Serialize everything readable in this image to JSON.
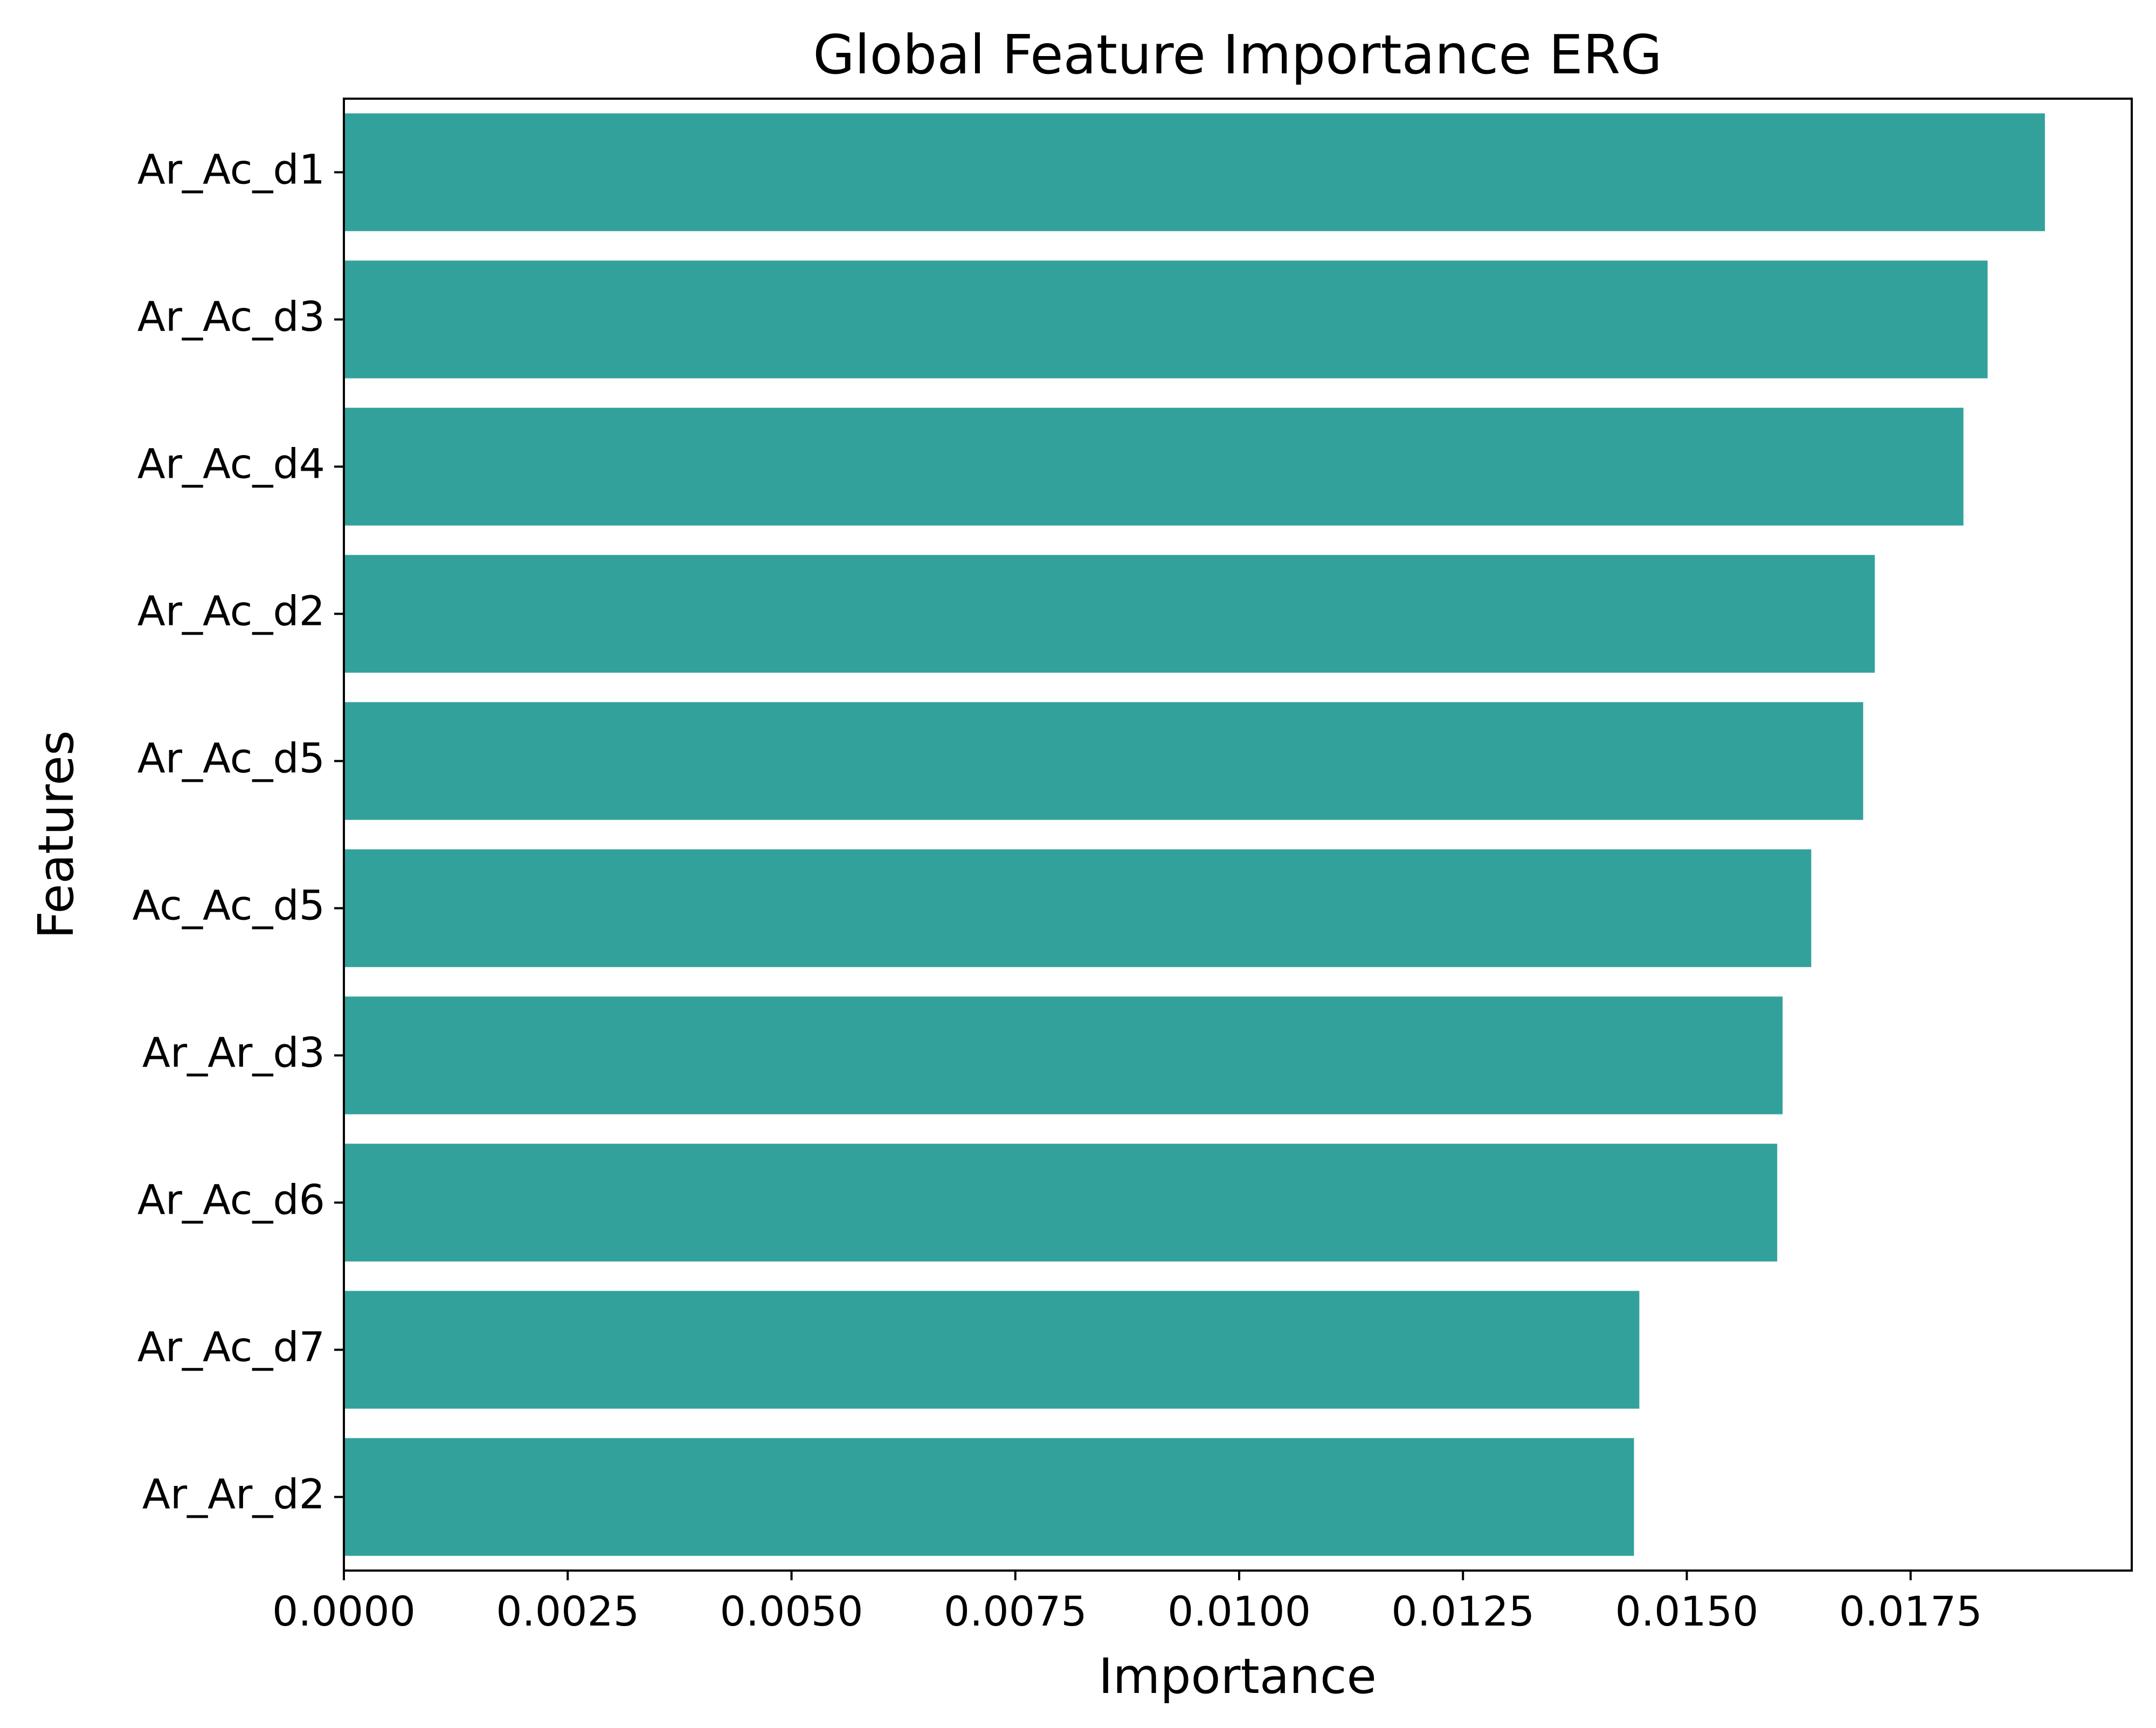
{
  "chart_data": {
    "type": "bar",
    "orientation": "horizontal",
    "title": "Global Feature Importance ERG",
    "xlabel": "Importance",
    "ylabel": "Features",
    "categories": [
      "Ar_Ac_d1",
      "Ar_Ac_d3",
      "Ar_Ac_d4",
      "Ar_Ac_d2",
      "Ar_Ac_d5",
      "Ac_Ac_d5",
      "Ar_Ar_d3",
      "Ar_Ac_d6",
      "Ar_Ac_d7",
      "Ar_Ar_d2"
    ],
    "values": [
      0.019,
      0.01836,
      0.01809,
      0.0171,
      0.01697,
      0.01639,
      0.01607,
      0.01601,
      0.01447,
      0.01441
    ],
    "xlim": [
      0,
      0.01997
    ],
    "xticks": [
      "0.0000",
      "0.0025",
      "0.0050",
      "0.0075",
      "0.0100",
      "0.0125",
      "0.0150",
      "0.0175"
    ],
    "xtick_values": [
      0,
      0.0025,
      0.005,
      0.0075,
      0.01,
      0.0125,
      0.015,
      0.0175
    ],
    "bar_color": "#33a19b",
    "grid": false,
    "legend": "none"
  }
}
